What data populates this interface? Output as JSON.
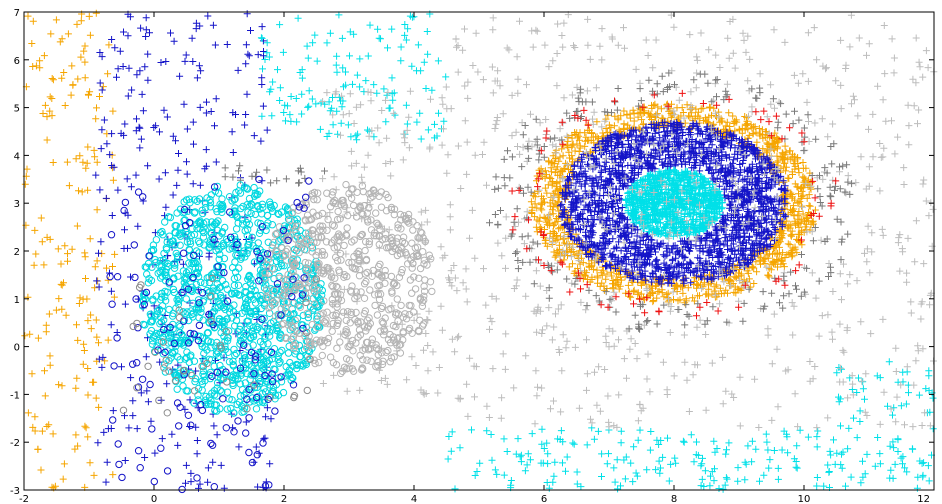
{
  "chart_data": {
    "type": "scatter",
    "title": "",
    "xlabel": "",
    "ylabel": "",
    "xlim": [
      -2,
      12
    ],
    "ylim": [
      -3,
      7
    ],
    "grid": false,
    "legend": "none",
    "x_ticks": [
      "-2",
      "0",
      "2",
      "4",
      "6",
      "8",
      "10",
      "12"
    ],
    "y_ticks": [
      "-3",
      "-2",
      "-1",
      "0",
      "1",
      "2",
      "3",
      "4",
      "5",
      "6",
      "7"
    ],
    "series": [
      {
        "marker": "plus",
        "color": "#f5a500",
        "clusters": [
          {
            "shape": "box",
            "x": [
              -2.0,
              -0.6
            ],
            "y": [
              -3.0,
              7.0
            ],
            "count": 180
          },
          {
            "shape": "ring",
            "cx": 8.0,
            "cy": 3.0,
            "r": [
              1.65,
              2.2
            ],
            "count": 1100
          }
        ]
      },
      {
        "marker": "plus",
        "color": "#1414c8",
        "clusters": [
          {
            "shape": "box",
            "x": [
              -0.9,
              1.8
            ],
            "y": [
              -3.0,
              7.0
            ],
            "count": 300
          },
          {
            "shape": "ellipse",
            "cx": 8.0,
            "cy": 3.0,
            "rx": [
              0.0,
              1.75
            ],
            "ry": [
              0.0,
              1.7
            ],
            "inner": 0.45,
            "count": 1800
          }
        ]
      },
      {
        "marker": "plus",
        "color": "#00e0e8",
        "clusters": [
          {
            "shape": "box",
            "x": [
              1.6,
              4.5
            ],
            "y": [
              4.3,
              7.0
            ],
            "count": 140
          },
          {
            "shape": "box",
            "x": [
              4.5,
              12.0
            ],
            "y": [
              -3.0,
              -1.7
            ],
            "count": 220
          },
          {
            "shape": "box",
            "x": [
              10.5,
              12.0
            ],
            "y": [
              -1.7,
              -0.3
            ],
            "count": 40
          },
          {
            "shape": "ellipse",
            "cx": 8.0,
            "cy": 3.0,
            "rx": [
              0.0,
              0.75
            ],
            "ry": [
              0.0,
              0.7
            ],
            "inner": 0.0,
            "count": 900
          }
        ]
      },
      {
        "marker": "plus",
        "color": "#bdbdbd",
        "clusters": [
          {
            "shape": "box",
            "x": [
              4.5,
              12.0
            ],
            "y": [
              -1.7,
              7.0
            ],
            "count": 700
          },
          {
            "shape": "box",
            "x": [
              2.5,
              4.5
            ],
            "y": [
              -1.0,
              5.5
            ],
            "count": 140
          }
        ]
      },
      {
        "marker": "plus",
        "color": "#7a7a7a",
        "clusters": [
          {
            "shape": "ring",
            "cx": 8.0,
            "cy": 3.0,
            "r": [
              2.2,
              2.9
            ],
            "count": 220
          },
          {
            "shape": "box",
            "x": [
              1.0,
              2.8
            ],
            "y": [
              3.4,
              3.8
            ],
            "count": 20
          }
        ]
      },
      {
        "marker": "plus",
        "color": "#ee1111",
        "clusters": [
          {
            "shape": "ring",
            "cx": 8.0,
            "cy": 3.0,
            "r": [
              2.1,
              2.55
            ],
            "count": 80
          }
        ]
      },
      {
        "marker": "circle",
        "color": "#00d8e0",
        "clusters": [
          {
            "shape": "ellipse",
            "cx": 1.2,
            "cy": 1.0,
            "rx": [
              0.0,
              1.4
            ],
            "ry": [
              0.0,
              2.4
            ],
            "inner": 0.0,
            "count": 1100
          }
        ]
      },
      {
        "marker": "circle",
        "color": "#b4b4b4",
        "clusters": [
          {
            "shape": "ellipse",
            "cx": 3.0,
            "cy": 1.4,
            "rx": [
              0.0,
              1.3
            ],
            "ry": [
              0.0,
              2.0
            ],
            "inner": 0.0,
            "count": 600
          }
        ]
      },
      {
        "marker": "circle",
        "color": "#1414c8",
        "clusters": [
          {
            "shape": "box",
            "x": [
              -0.7,
              2.4
            ],
            "y": [
              -3.0,
              3.5
            ],
            "count": 130
          }
        ]
      },
      {
        "marker": "circle",
        "color": "#8c8c8c",
        "clusters": [
          {
            "shape": "box",
            "x": [
              -0.6,
              2.5
            ],
            "y": [
              -1.5,
              1.5
            ],
            "count": 40
          }
        ]
      }
    ]
  }
}
